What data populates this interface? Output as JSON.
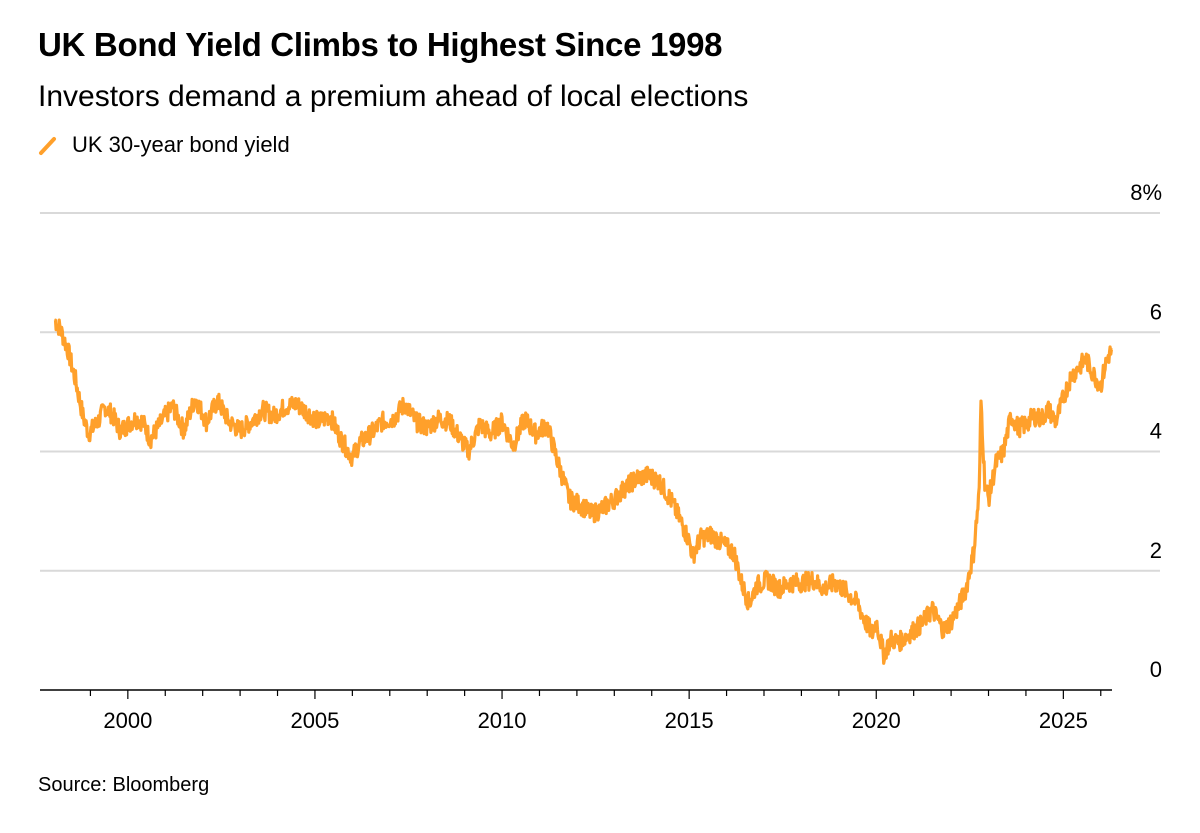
{
  "title": "UK Bond Yield Climbs to Highest Since 1998",
  "subtitle": "Investors demand a premium ahead of local elections",
  "source": "Source: Bloomberg",
  "colors": {
    "series": "#ffa02b",
    "grid": "#d9d9d9",
    "axis": "#000000"
  },
  "legend": {
    "icon": "line-swatch-icon",
    "label": "UK 30-year bond yield"
  },
  "chart_data": {
    "type": "line",
    "title": "UK Bond Yield Climbs to Highest Since 1998",
    "subtitle": "Investors demand a premium ahead of local elections",
    "xlabel": "",
    "ylabel": "",
    "xlim": [
      1998.0,
      2026.3
    ],
    "ylim": [
      0,
      8
    ],
    "y_ticks": [
      0,
      2,
      4,
      6,
      8
    ],
    "y_tick_labels": [
      "0",
      "2",
      "4",
      "6",
      "8%"
    ],
    "x_ticks": [
      2000,
      2005,
      2010,
      2015,
      2020,
      2025
    ],
    "x_tick_labels": [
      "2000",
      "2005",
      "2010",
      "2015",
      "2020",
      "2025"
    ],
    "grid": true,
    "y_axis_side": "right",
    "legend_position": "top-left",
    "series": [
      {
        "name": "UK 30-year bond yield",
        "x": [
          1998.05,
          1998.2,
          1998.4,
          1998.6,
          1998.8,
          1998.95,
          1999.2,
          1999.4,
          1999.6,
          1999.8,
          2000.0,
          2000.2,
          2000.4,
          2000.6,
          2000.8,
          2001.0,
          2001.2,
          2001.5,
          2001.8,
          2002.1,
          2002.4,
          2002.7,
          2003.0,
          2003.3,
          2003.6,
          2003.9,
          2004.2,
          2004.5,
          2004.8,
          2005.1,
          2005.4,
          2005.7,
          2006.0,
          2006.2,
          2006.5,
          2006.8,
          2007.1,
          2007.4,
          2007.7,
          2008.0,
          2008.3,
          2008.6,
          2008.9,
          2009.1,
          2009.4,
          2009.7,
          2010.0,
          2010.3,
          2010.6,
          2010.9,
          2011.2,
          2011.5,
          2011.8,
          2012.1,
          2012.4,
          2012.7,
          2013.0,
          2013.3,
          2013.6,
          2013.9,
          2014.2,
          2014.5,
          2014.8,
          2015.0,
          2015.1,
          2015.3,
          2015.6,
          2015.9,
          2016.2,
          2016.4,
          2016.6,
          2016.8,
          2017.1,
          2017.4,
          2017.7,
          2018.0,
          2018.3,
          2018.6,
          2018.9,
          2019.2,
          2019.5,
          2019.7,
          2019.9,
          2020.0,
          2020.2,
          2020.4,
          2020.6,
          2020.9,
          2021.2,
          2021.5,
          2021.8,
          2022.0,
          2022.2,
          2022.4,
          2022.6,
          2022.75,
          2022.8,
          2022.9,
          2023.0,
          2023.2,
          2023.4,
          2023.6,
          2023.8,
          2024.0,
          2024.2,
          2024.4,
          2024.6,
          2024.8,
          2025.0,
          2025.2,
          2025.4,
          2025.6,
          2025.8,
          2026.0,
          2026.1,
          2026.2,
          2026.3
        ],
        "y": [
          6.2,
          6.05,
          5.7,
          5.2,
          4.6,
          4.3,
          4.5,
          4.75,
          4.6,
          4.35,
          4.45,
          4.55,
          4.5,
          4.2,
          4.4,
          4.6,
          4.75,
          4.35,
          4.9,
          4.5,
          4.85,
          4.5,
          4.35,
          4.5,
          4.7,
          4.6,
          4.75,
          4.8,
          4.65,
          4.5,
          4.6,
          4.2,
          3.9,
          4.15,
          4.3,
          4.5,
          4.55,
          4.8,
          4.5,
          4.4,
          4.55,
          4.5,
          4.2,
          4.0,
          4.45,
          4.3,
          4.5,
          4.1,
          4.55,
          4.3,
          4.45,
          3.8,
          3.2,
          3.1,
          2.95,
          3.05,
          3.2,
          3.4,
          3.55,
          3.6,
          3.5,
          3.2,
          2.8,
          2.5,
          2.25,
          2.55,
          2.6,
          2.45,
          2.3,
          1.8,
          1.45,
          1.75,
          1.85,
          1.7,
          1.8,
          1.8,
          1.85,
          1.7,
          1.8,
          1.65,
          1.45,
          1.15,
          0.95,
          1.15,
          0.6,
          0.85,
          0.8,
          0.95,
          1.1,
          1.35,
          1.0,
          1.15,
          1.4,
          1.7,
          2.3,
          3.3,
          4.85,
          3.5,
          3.2,
          3.8,
          4.0,
          4.6,
          4.4,
          4.45,
          4.6,
          4.55,
          4.7,
          4.5,
          4.9,
          5.25,
          5.4,
          5.55,
          5.3,
          5.1,
          5.4,
          5.6,
          5.7
        ]
      }
    ]
  }
}
